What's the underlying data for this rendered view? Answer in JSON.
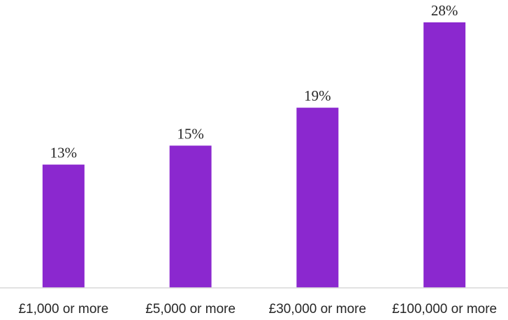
{
  "chart_data": {
    "type": "bar",
    "categories": [
      "£1,000 or more",
      "£5,000 or more",
      "£30,000 or more",
      "£100,000 or more"
    ],
    "values": [
      13,
      15,
      19,
      28
    ],
    "data_labels": [
      "13%",
      "15%",
      "19%",
      "28%"
    ],
    "ylim": [
      0,
      28
    ],
    "grid": false,
    "bar_color": "#8b28cf",
    "axis_color": "#d9d9d9"
  }
}
